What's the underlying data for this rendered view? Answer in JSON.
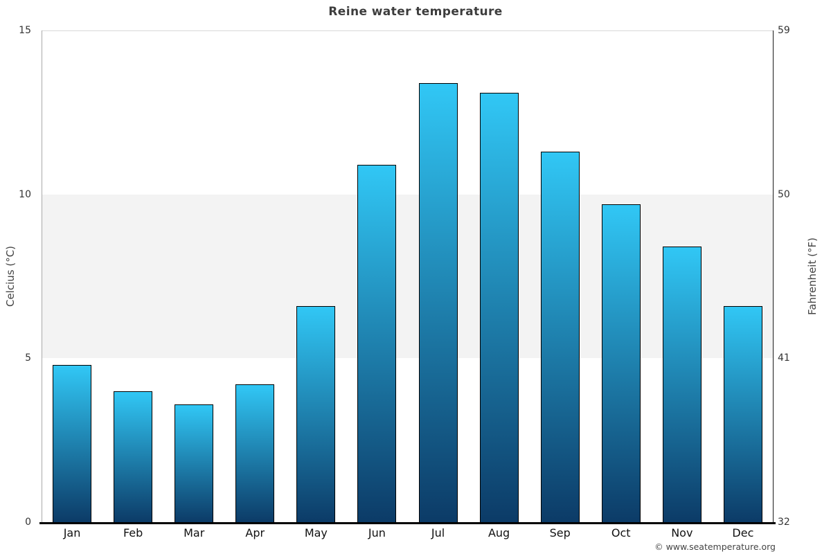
{
  "title": "Reine water temperature",
  "watermark": "© www.seatemperature.org",
  "chart_data": {
    "type": "bar",
    "title": "Reine water temperature",
    "categories": [
      "Jan",
      "Feb",
      "Mar",
      "Apr",
      "May",
      "Jun",
      "Jul",
      "Aug",
      "Sep",
      "Oct",
      "Nov",
      "Dec"
    ],
    "values": [
      4.8,
      4.0,
      3.6,
      4.2,
      6.6,
      10.9,
      13.4,
      13.1,
      11.3,
      9.7,
      8.4,
      6.6
    ],
    "unit": "°C",
    "ylabel_left": "Celcius (°C)",
    "ylabel_right": "Fahrenheit (°F)",
    "ylim": [
      0,
      15
    ],
    "yticks_left": [
      0,
      5,
      10,
      15
    ],
    "yticks_right": [
      32,
      41,
      50,
      59
    ],
    "band": {
      "from": 5,
      "to": 10,
      "color": "#f3f3f3"
    },
    "grid": "top-line-only",
    "legend": false,
    "colors": {
      "bar_gradient_top": "#31c7f5",
      "bar_gradient_bottom": "#0c3b67",
      "bar_border": "#000000",
      "band": "#f3f3f3",
      "axis_text": "#333333",
      "title_text": "#3d3d3d"
    }
  }
}
